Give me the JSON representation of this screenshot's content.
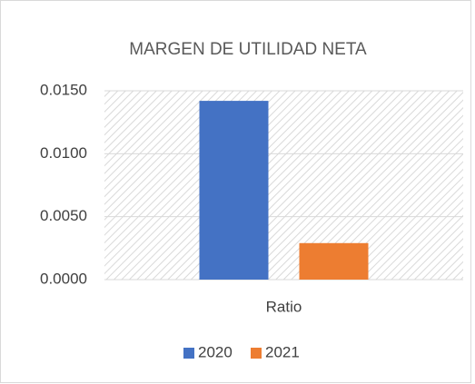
{
  "chart_data": {
    "type": "bar",
    "title": "MARGEN DE UTILIDAD NETA",
    "categories": [
      "Ratio"
    ],
    "series": [
      {
        "name": "2020",
        "color": "#4472c4",
        "values": [
          0.0142
        ]
      },
      {
        "name": "2021",
        "color": "#ed7d31",
        "values": [
          0.0029
        ]
      }
    ],
    "ylim": [
      0,
      0.015
    ],
    "yticks": [
      {
        "value": 0,
        "label": "0.0000"
      },
      {
        "value": 0.005,
        "label": "0.0050"
      },
      {
        "value": 0.01,
        "label": "0.0100"
      },
      {
        "value": 0.015,
        "label": "0.0150"
      }
    ],
    "grid": true,
    "legend": "bottom"
  }
}
